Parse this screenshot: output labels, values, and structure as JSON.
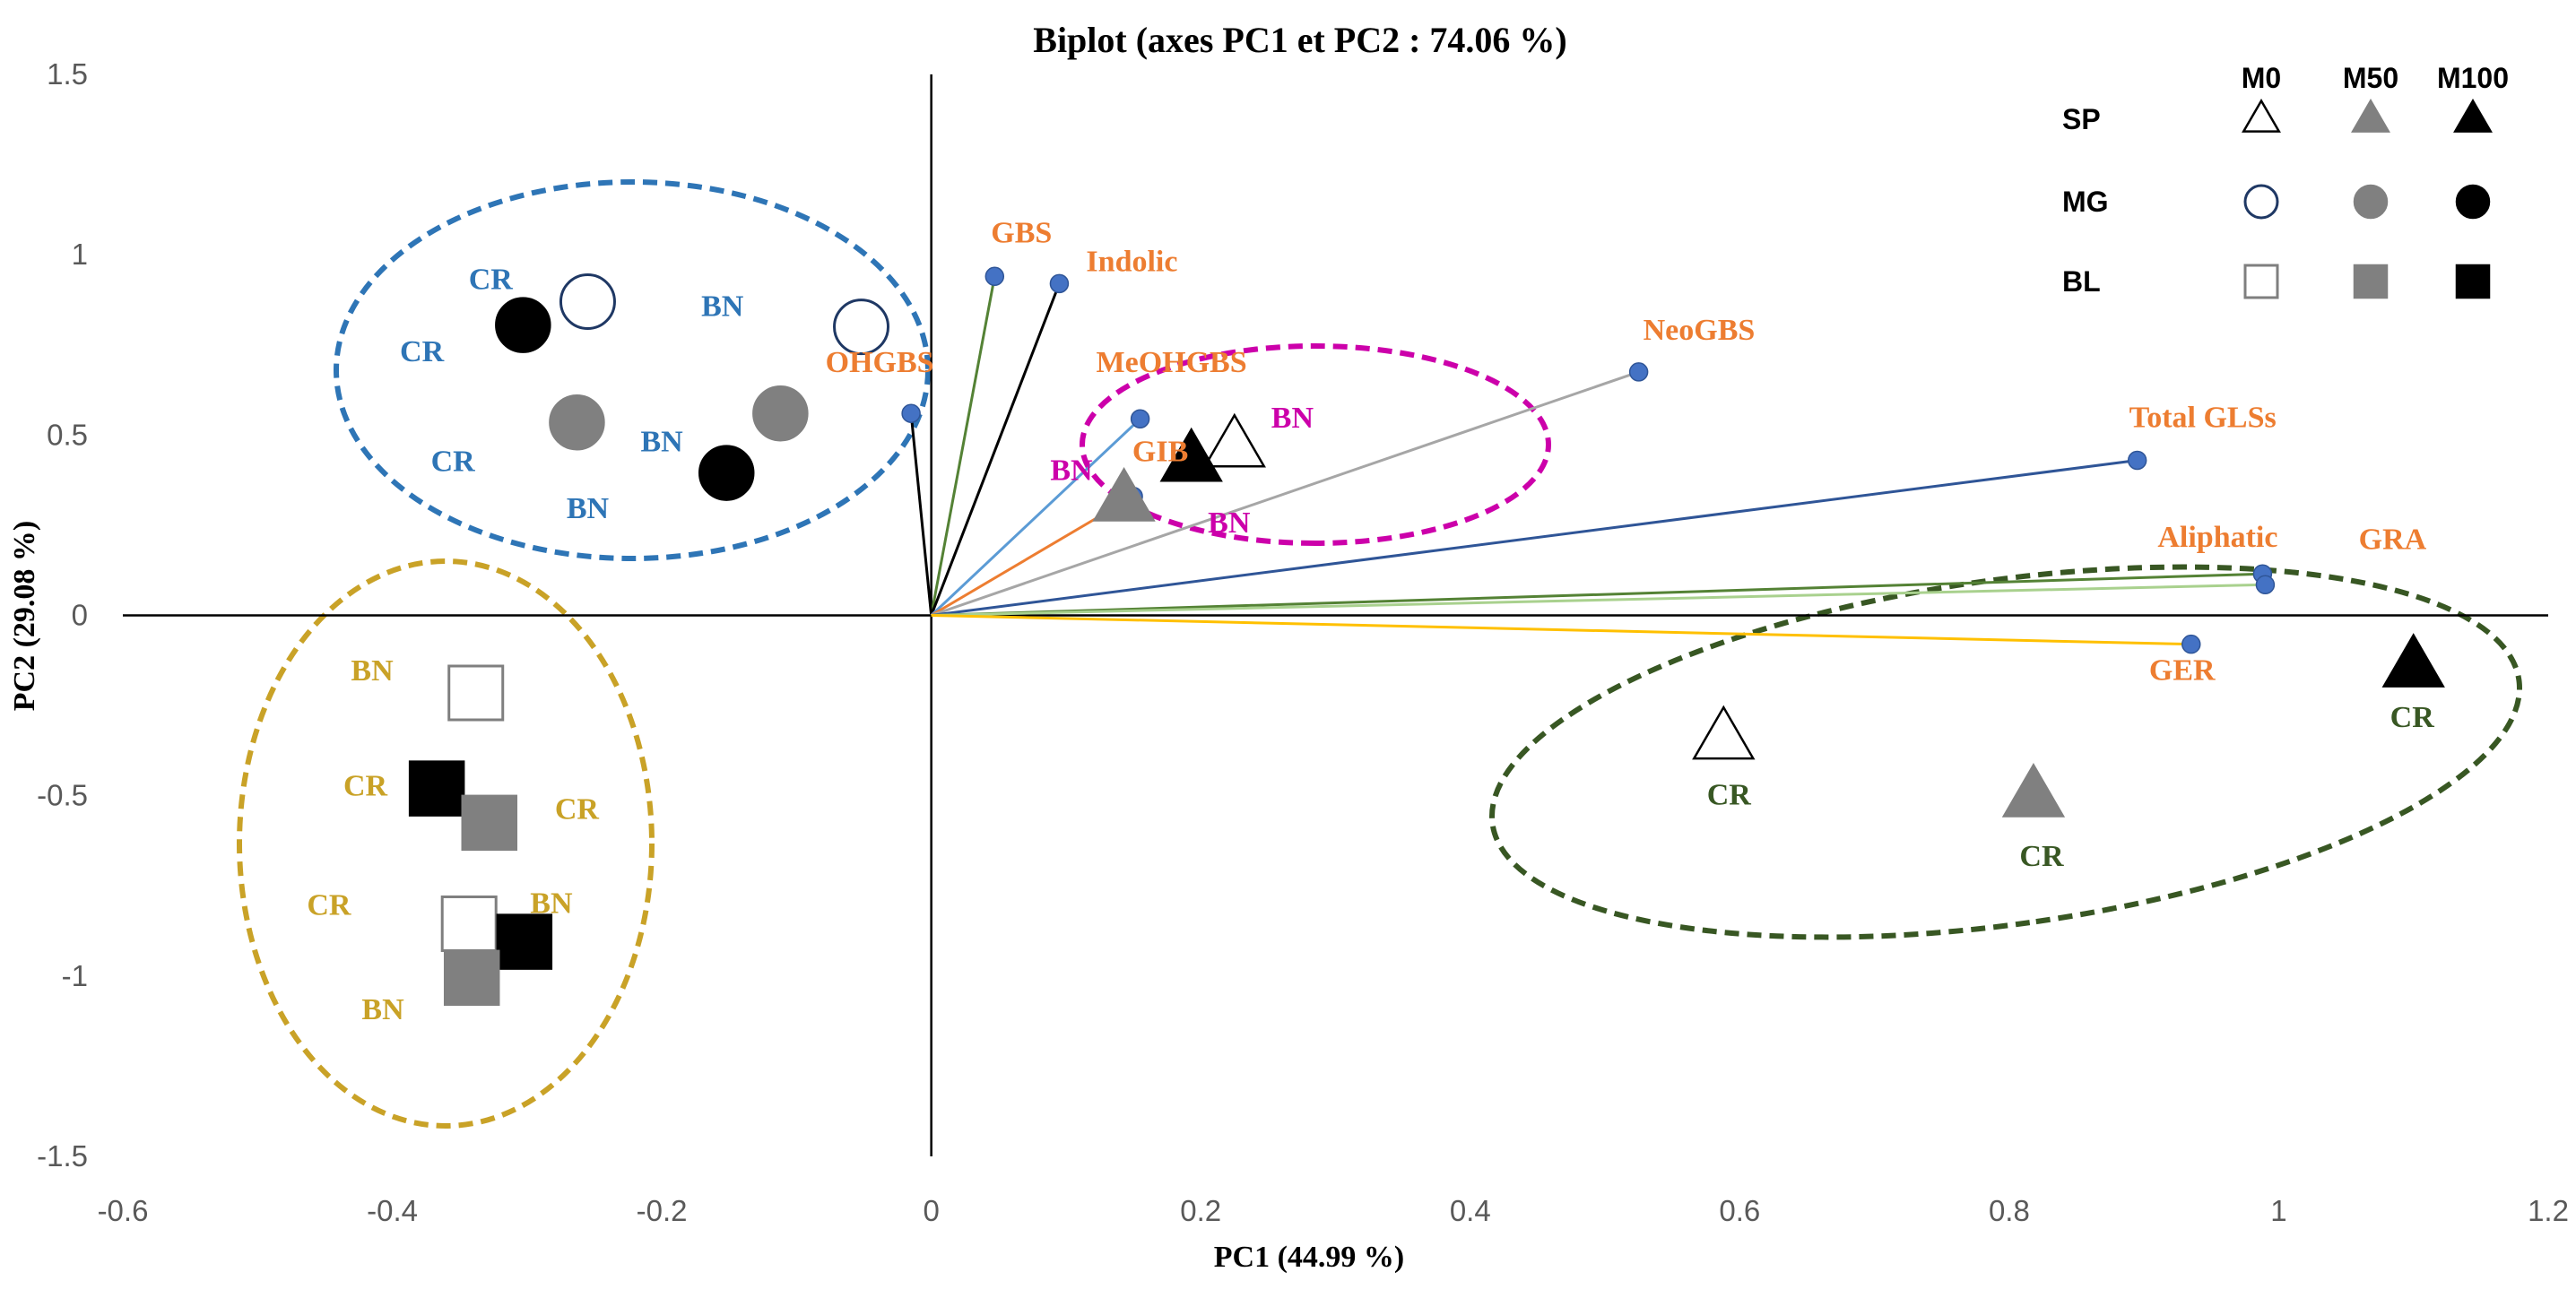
{
  "chart_data": {
    "type": "scatter",
    "title": "Biplot (axes PC1 et PC2 : 74.06 %)",
    "xlabel": "PC1 (44.99 %)",
    "ylabel": "PC2 (29.08 %)",
    "xlim": [
      -0.6,
      1.2
    ],
    "ylim": [
      -1.5,
      1.5
    ],
    "xticks": [
      -0.6,
      -0.4,
      -0.2,
      0,
      0.2,
      0.4,
      0.6,
      0.8,
      1,
      1.2
    ],
    "yticks": [
      -1.5,
      -1,
      -0.5,
      0,
      0.5,
      1,
      1.5
    ],
    "xtick_labels": [
      "-0.6",
      "-0.4",
      "-0.2",
      "0",
      "0.2",
      "0.4",
      "0.6",
      "0.8",
      "1",
      "1.2"
    ],
    "ytick_labels": [
      "-1.5",
      "-1",
      "-0.5",
      "0",
      "0.5",
      "1",
      "1.5"
    ],
    "colors": {
      "variable_label": "#ED7D31",
      "variable_point": "#4472C4",
      "group_MG": "#2E75B6",
      "group_BL": "#C9A227",
      "group_SP_center": "#CC00AA",
      "group_SP_right": "#385723",
      "marker_M50": "#808080",
      "marker_M100": "#000000"
    },
    "variables": [
      {
        "name": "GBS",
        "x": 0.047,
        "y": 0.94,
        "line_color": "#548235"
      },
      {
        "name": "Indolic",
        "x": 0.095,
        "y": 0.92,
        "line_color": "#000000"
      },
      {
        "name": "OHGBS",
        "x": -0.015,
        "y": 0.56,
        "line_color": "#000000"
      },
      {
        "name": "MeOHGBS",
        "x": 0.155,
        "y": 0.545,
        "line_color": "#5B9BD5"
      },
      {
        "name": "GIB",
        "x": 0.15,
        "y": 0.33,
        "line_color": "#ED7D31"
      },
      {
        "name": "NeoGBS",
        "x": 0.525,
        "y": 0.675,
        "line_color": "#A6A6A6"
      },
      {
        "name": "Total GLSs",
        "x": 0.895,
        "y": 0.43,
        "line_color": "#2F5597"
      },
      {
        "name": "Aliphatic",
        "x": 0.988,
        "y": 0.115,
        "line_color": "#548235"
      },
      {
        "name": "GRA",
        "x": 0.99,
        "y": 0.085,
        "line_color": "#A9D18E"
      },
      {
        "name": "GER",
        "x": 0.935,
        "y": -0.08,
        "line_color": "#FFC000"
      }
    ],
    "observations": [
      {
        "group": "MG",
        "treatment": "M0",
        "x": -0.255,
        "y": 0.87
      },
      {
        "group": "MG",
        "treatment": "M100",
        "x": -0.303,
        "y": 0.805
      },
      {
        "group": "MG",
        "treatment": "M0",
        "x": -0.052,
        "y": 0.8
      },
      {
        "group": "MG",
        "treatment": "M50",
        "x": -0.263,
        "y": 0.535
      },
      {
        "group": "MG",
        "treatment": "M50",
        "x": -0.112,
        "y": 0.56
      },
      {
        "group": "MG",
        "treatment": "M100",
        "x": -0.152,
        "y": 0.395
      },
      {
        "group": "SP",
        "treatment": "M0",
        "x": 0.225,
        "y": 0.47
      },
      {
        "group": "SP",
        "treatment": "M100",
        "x": 0.193,
        "y": 0.43
      },
      {
        "group": "SP",
        "treatment": "M50",
        "x": 0.143,
        "y": 0.32
      },
      {
        "group": "SP",
        "treatment": "M0",
        "x": 0.588,
        "y": -0.34
      },
      {
        "group": "SP",
        "treatment": "M50",
        "x": 0.818,
        "y": -0.5
      },
      {
        "group": "SP",
        "treatment": "M100",
        "x": 1.1,
        "y": -0.14
      },
      {
        "group": "BL",
        "treatment": "M0",
        "x": -0.338,
        "y": -0.215
      },
      {
        "group": "BL",
        "treatment": "M100",
        "x": -0.367,
        "y": -0.48
      },
      {
        "group": "BL",
        "treatment": "M50",
        "x": -0.328,
        "y": -0.575
      },
      {
        "group": "BL",
        "treatment": "M0",
        "x": -0.343,
        "y": -0.855
      },
      {
        "group": "BL",
        "treatment": "M100",
        "x": -0.302,
        "y": -0.905
      },
      {
        "group": "BL",
        "treatment": "M50",
        "x": -0.341,
        "y": -1.005
      }
    ],
    "point_labels": [
      {
        "text": "CR",
        "x": -0.327,
        "y": 0.935,
        "color": "#2E75B6"
      },
      {
        "text": "CR",
        "x": -0.378,
        "y": 0.735,
        "color": "#2E75B6"
      },
      {
        "text": "CR",
        "x": -0.355,
        "y": 0.43,
        "color": "#2E75B6"
      },
      {
        "text": "BN",
        "x": -0.155,
        "y": 0.86,
        "color": "#2E75B6"
      },
      {
        "text": "BN",
        "x": -0.2,
        "y": 0.485,
        "color": "#2E75B6"
      },
      {
        "text": "BN",
        "x": -0.255,
        "y": 0.3,
        "color": "#2E75B6"
      },
      {
        "text": "BN",
        "x": 0.268,
        "y": 0.55,
        "color": "#CC00AA"
      },
      {
        "text": "BN",
        "x": 0.104,
        "y": 0.405,
        "color": "#CC00AA"
      },
      {
        "text": "BN",
        "x": 0.221,
        "y": 0.26,
        "color": "#CC00AA"
      },
      {
        "text": "CR",
        "x": 0.592,
        "y": -0.495,
        "color": "#385723"
      },
      {
        "text": "CR",
        "x": 0.824,
        "y": -0.665,
        "color": "#385723"
      },
      {
        "text": "CR",
        "x": 1.099,
        "y": -0.28,
        "color": "#385723"
      },
      {
        "text": "BN",
        "x": -0.415,
        "y": -0.15,
        "color": "#C9A227"
      },
      {
        "text": "CR",
        "x": -0.42,
        "y": -0.47,
        "color": "#C9A227"
      },
      {
        "text": "CR",
        "x": -0.263,
        "y": -0.535,
        "color": "#C9A227"
      },
      {
        "text": "CR",
        "x": -0.447,
        "y": -0.8,
        "color": "#C9A227"
      },
      {
        "text": "BN",
        "x": -0.282,
        "y": -0.795,
        "color": "#C9A227"
      },
      {
        "text": "BN",
        "x": -0.407,
        "y": -1.09,
        "color": "#C9A227"
      }
    ],
    "legend": {
      "placement": "top-right",
      "columns": [
        "M0",
        "M50",
        "M100"
      ],
      "rows": [
        {
          "label": "SP",
          "marker": "triangle"
        },
        {
          "label": "MG",
          "marker": "circle"
        },
        {
          "label": "BL",
          "marker": "square"
        }
      ]
    }
  }
}
